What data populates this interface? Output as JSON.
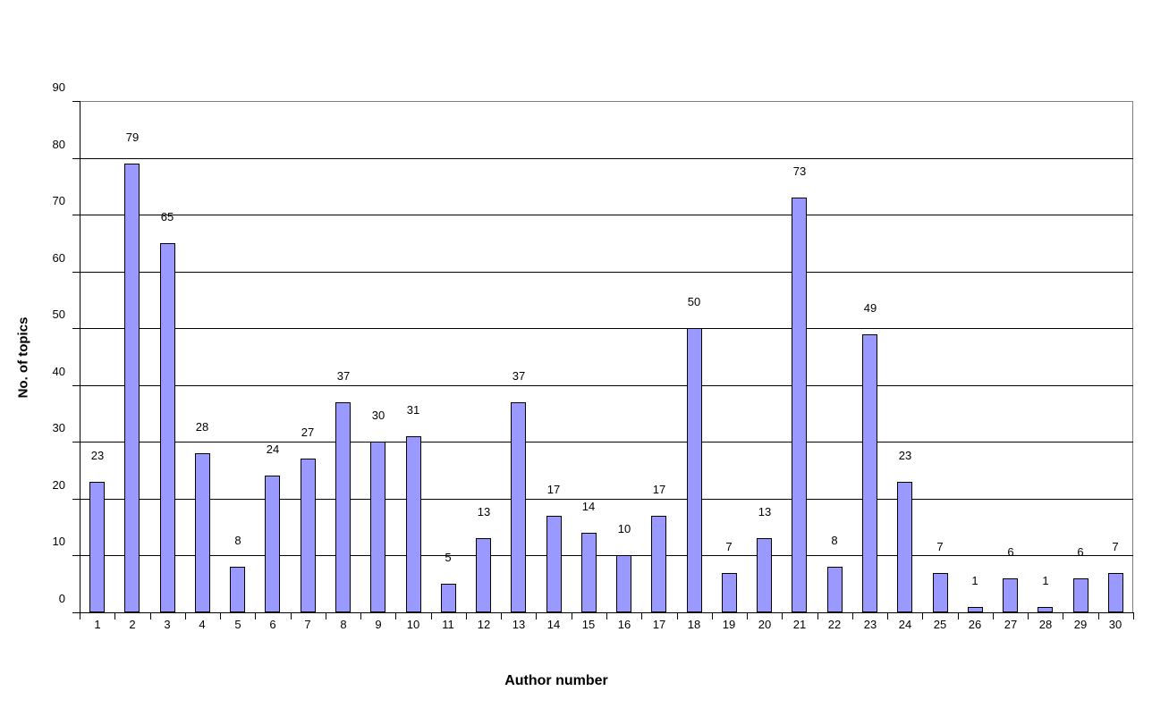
{
  "chart_data": {
    "type": "bar",
    "title": "",
    "xlabel": "Author number",
    "ylabel": "No. of topics",
    "categories": [
      "1",
      "2",
      "3",
      "4",
      "5",
      "6",
      "7",
      "8",
      "9",
      "10",
      "11",
      "12",
      "13",
      "14",
      "15",
      "16",
      "17",
      "18",
      "19",
      "20",
      "21",
      "22",
      "23",
      "24",
      "25",
      "26",
      "27",
      "28",
      "29",
      "30"
    ],
    "values": [
      23,
      79,
      65,
      28,
      8,
      24,
      27,
      37,
      30,
      31,
      5,
      13,
      37,
      17,
      14,
      10,
      17,
      50,
      7,
      13,
      73,
      8,
      49,
      23,
      7,
      1,
      6,
      1,
      6,
      7
    ],
    "data_labels_shown": true,
    "ylim": [
      0,
      90
    ],
    "ytick_step": 10,
    "yticks": [
      0,
      10,
      20,
      30,
      40,
      50,
      60,
      70,
      80,
      90
    ],
    "grid": "horizontal",
    "legend": "none",
    "colors": {
      "bar_fill": "#9999FF",
      "bar_border": "#000000",
      "gridline": "#000000",
      "plot_border": "#808080",
      "text": "#000000",
      "background": "#FFFFFF"
    }
  }
}
